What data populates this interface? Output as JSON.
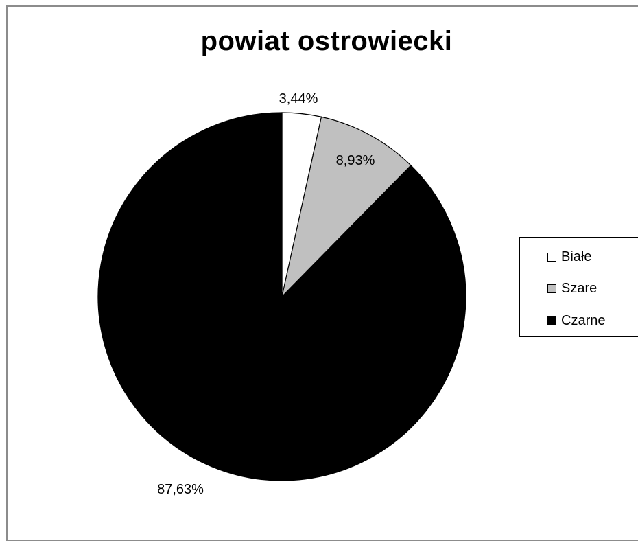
{
  "chart_data": {
    "type": "pie",
    "title": "powiat ostrowiecki",
    "categories": [
      "Białe",
      "Szare",
      "Czarne"
    ],
    "values": [
      3.44,
      8.93,
      87.63
    ],
    "labels": [
      "3,44%",
      "8,93%",
      "87,63%"
    ],
    "colors": [
      "#ffffff",
      "#c0c0c0",
      "#000000"
    ],
    "legend_position": "right"
  }
}
